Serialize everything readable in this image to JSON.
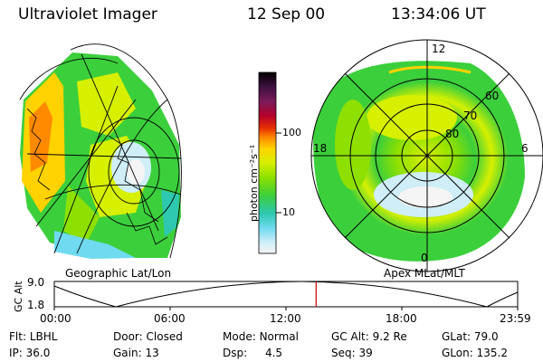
{
  "header": {
    "title": "Ultraviolet Imager",
    "date": "12 Sep 00",
    "time": "13:34:06 UT"
  },
  "colorbar": {
    "unit_label": "photon cm⁻²s⁻¹",
    "ticks": [
      "100",
      "10"
    ],
    "colors": [
      "#000000",
      "#3d0f3f",
      "#7a1b5a",
      "#b4002a",
      "#e83200",
      "#ff8a00",
      "#ffd200",
      "#d6f000",
      "#8ee000",
      "#3ccf3c",
      "#2ec8b0",
      "#6fdaf0",
      "#cfeef7",
      "#f5f5f5"
    ]
  },
  "geo_panel": {
    "label": "Geographic Lat/Lon"
  },
  "polar_panel": {
    "label": "Apex MLat/MLT",
    "mlt_labels": {
      "top": "12",
      "bottom": "0",
      "left": "18",
      "right": "6"
    },
    "mlat_labels": [
      "60",
      "70",
      "80"
    ]
  },
  "altitude_plot": {
    "ylabel": "GC Alt",
    "y_ticks": [
      "9.0",
      "1.8"
    ],
    "x_ticks": [
      "00:00",
      "06:00",
      "12:00",
      "18:00",
      "23:59"
    ],
    "current_time_fraction": 0.565,
    "cursor_color": "#cc0000"
  },
  "info": {
    "flt_label": "Flt:",
    "flt_value": "LBHL",
    "door_label": "Door:",
    "door_value": "Closed",
    "mode_label": "Mode:",
    "mode_value": "Normal",
    "gcalt_label": "GC Alt:",
    "gcalt_value": "9.2 Re",
    "glat_label": "GLat:",
    "glat_value": "79.0",
    "ip_label": "IP:",
    "ip_value": "36.0",
    "gain_label": "Gain:",
    "gain_value": "13",
    "dsp_label": "Dsp:",
    "dsp_value": "4.5",
    "seq_label": "Seq:",
    "seq_value": "39",
    "glon_label": "GLon:",
    "glon_value": "135.2"
  }
}
